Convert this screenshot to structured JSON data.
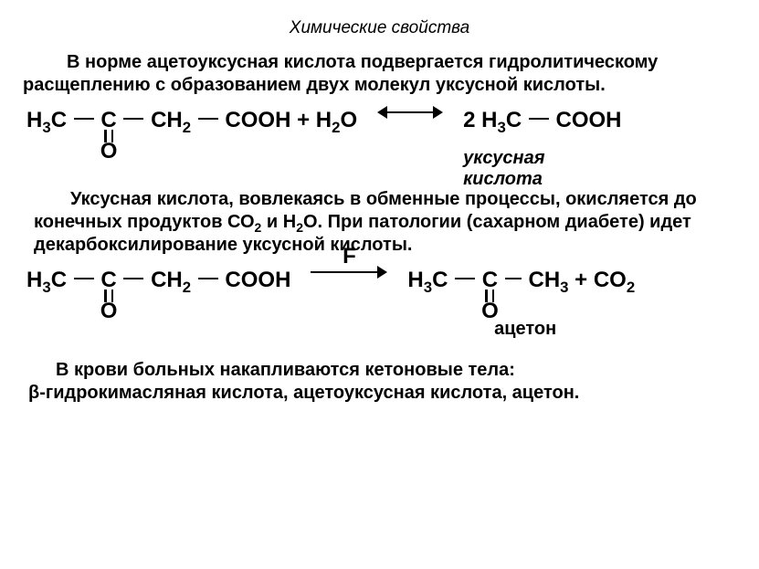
{
  "title": "Химические свойства",
  "para1": "В норме ацетоуксусная кислота подвергается гидролитическому расщеплению с образованием двух молекул уксусной кислоты.",
  "eq1": {
    "lhs": {
      "p1": "H",
      "s1": "3",
      "p2": "C",
      "c": "C",
      "p3": "CH",
      "s2": "2",
      "p4": "COOH + H",
      "s3": "2",
      "p5": "O",
      "O": "O"
    },
    "rhs": {
      "coef": "2 H",
      "s1": "3",
      "p2": "C",
      "p3": "COOH"
    },
    "caption": "уксусная кислота"
  },
  "para2": "Уксусная кислота, вовлекаясь в обменные процессы, окисляется до конечных продуктов СО",
  "para2_sub": "2",
  "para2b": " и Н",
  "para2_sub2": "2",
  "para2c": "О. При патологии (сахарном диабете) идет декарбоксилирование уксусной кислоты.",
  "eq2": {
    "arrow_label": "F",
    "lhs": {
      "p1": "H",
      "s1": "3",
      "p2": "C",
      "c": "C",
      "p3": "CH",
      "s2": "2",
      "p4": " COOH",
      "O": "O"
    },
    "rhs": {
      "p1": "H",
      "s1": "3",
      "p2": "C",
      "c": "C",
      "p3": " CH",
      "s2": "3",
      "p4": " + CO",
      "s3": "2",
      "O": "O"
    },
    "caption": "ацетон"
  },
  "para3a": "В крови больных накапливаются кетоновые тела:",
  "para3b": "β-гидрокимасляная кислота, ацетоуксусная кислота, ацетон."
}
